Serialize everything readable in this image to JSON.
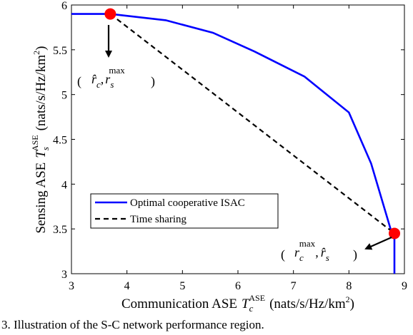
{
  "chart_data": {
    "type": "line",
    "xlabel": "Communication ASE",
    "xlabel_symbol": "T",
    "xlabel_sub": "c",
    "xlabel_sup": "ASE",
    "xlabel_unit_open": "(nats/s/Hz/km",
    "xlabel_unit_sup": "2",
    "xlabel_unit_close": ")",
    "ylabel": "Sensing ASE",
    "ylabel_symbol": "T",
    "ylabel_sub": "s",
    "ylabel_sup": "ASE",
    "ylabel_unit_open": "(nats/s/Hz/km",
    "ylabel_unit_sup": "2",
    "ylabel_unit_close": ")",
    "xlim": [
      3,
      9
    ],
    "ylim": [
      3,
      6
    ],
    "xticks": [
      3,
      4,
      5,
      6,
      7,
      8,
      9
    ],
    "yticks": [
      3,
      3.5,
      4,
      4.5,
      5,
      5.5,
      6
    ],
    "grid": false,
    "legend_position": "lower-left",
    "series": [
      {
        "name": "Optimal cooperative ISAC",
        "color": "#0000ff",
        "style": "solid",
        "x": [
          3.0,
          3.7,
          4.7,
          5.55,
          6.3,
          7.2,
          8.0,
          8.4,
          8.75,
          8.82,
          8.82
        ],
        "y": [
          5.9,
          5.9,
          5.83,
          5.69,
          5.48,
          5.2,
          4.8,
          4.23,
          3.5,
          3.45,
          3.0
        ]
      },
      {
        "name": "Time sharing",
        "color": "#000000",
        "style": "dashed",
        "x": [
          3.7,
          8.82
        ],
        "y": [
          5.9,
          3.45
        ]
      }
    ],
    "points": [
      {
        "x": 3.7,
        "y": 5.9,
        "color": "#ff0000"
      },
      {
        "x": 8.82,
        "y": 3.45,
        "color": "#ff0000"
      }
    ],
    "annotations": [
      {
        "label": "point-a",
        "r1": "r̂",
        "r1_sub": "c",
        "r2": "r",
        "r2_sub": "s",
        "r2_sup": "max"
      },
      {
        "label": "point-b",
        "r1": "r",
        "r1_sub": "c",
        "r1_sup": "max",
        "r2": "r̂",
        "r2_sub": "s"
      }
    ]
  },
  "caption": "3.  Illustration of the S-C network performance region."
}
